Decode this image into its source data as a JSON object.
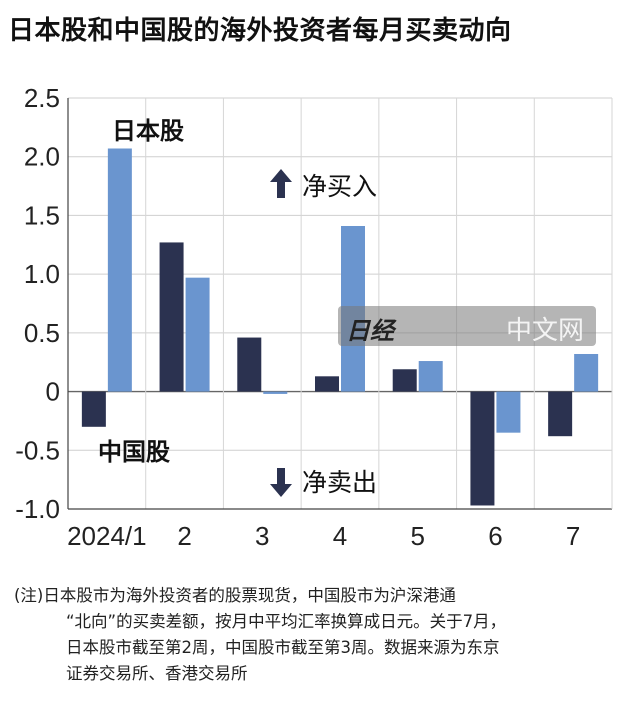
{
  "title": "日本股和中国股的海外投资者每月买卖动向",
  "chart_data": {
    "type": "bar",
    "categories": [
      "2024/1",
      "2",
      "3",
      "4",
      "5",
      "6",
      "7"
    ],
    "series": [
      {
        "name": "中国股",
        "color": "#2b3250",
        "values": [
          -0.3,
          1.27,
          0.46,
          0.13,
          0.19,
          -0.97,
          -0.38
        ]
      },
      {
        "name": "日本股",
        "color": "#6a95cf",
        "values": [
          2.07,
          0.97,
          -0.02,
          1.41,
          0.26,
          -0.35,
          0.32
        ]
      }
    ],
    "ylim": [
      -1.0,
      2.5
    ],
    "yticks": [
      "2.5",
      "2.0",
      "1.5",
      "1.0",
      "0.5",
      "0",
      "-0.5",
      "-1.0"
    ],
    "grid": true,
    "annotations": {
      "buy": "净买入",
      "sell": "净卖出"
    }
  },
  "watermark": {
    "logo": "日经",
    "text": "中文网"
  },
  "footnote": [
    "(注)日本股市为海外投资者的股票现货，中国股市为沪深港通",
    "“北向”的买卖差额，按月中平均汇率换算成日元。关于7月，",
    "日本股市截至第2周，中国股市截至第3周。数据来源为东京",
    "证券交易所、香港交易所"
  ]
}
